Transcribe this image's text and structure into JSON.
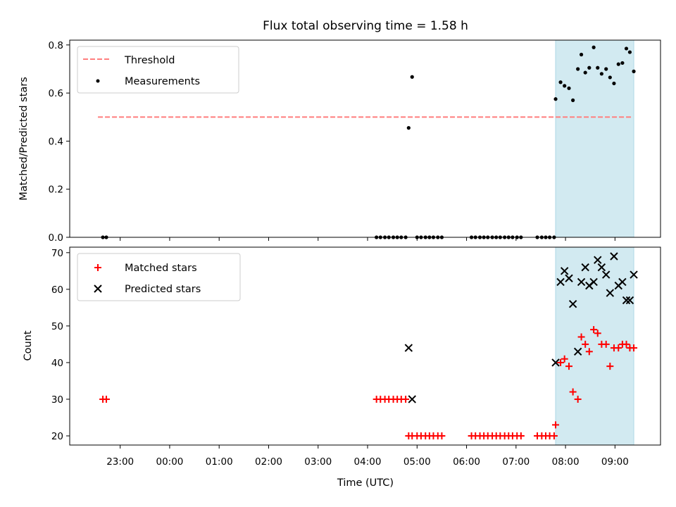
{
  "chart_data": {
    "type": "scatter",
    "title": "Flux total observing time = 1.58 h",
    "xlabel": "Time (UTC)",
    "x_ticks": [
      "23:00",
      "00:00",
      "01:00",
      "02:00",
      "03:00",
      "04:00",
      "05:00",
      "06:00",
      "07:00",
      "08:00",
      "09:00"
    ],
    "x_tick_hours": [
      23,
      24,
      25,
      26,
      27,
      28,
      29,
      30,
      31,
      32,
      33
    ],
    "xlim_hours": [
      21.98,
      33.92
    ],
    "highlight_span_hours": [
      31.8,
      33.38
    ],
    "colors": {
      "threshold": "#ff7f7f",
      "measurements": "#000000",
      "matched": "#ff0000",
      "predicted": "#000000",
      "highlight": "#add8e6"
    },
    "panels": [
      {
        "name": "ratio",
        "ylabel": "Matched/Predicted stars",
        "ylim": [
          0,
          0.82
        ],
        "y_ticks": [
          "0.0",
          "0.2",
          "0.4",
          "0.6",
          "0.8"
        ],
        "y_tick_values": [
          0,
          0.2,
          0.4,
          0.6,
          0.8
        ],
        "legend": [
          "Threshold",
          "Measurements"
        ],
        "legend_position": "upper-left",
        "threshold": {
          "name": "Threshold",
          "value": 0.5,
          "x_range_hours": [
            22.55,
            33.35
          ]
        },
        "measurements": {
          "name": "Measurements",
          "x_hours": [
            22.65,
            22.72,
            28.18,
            28.26,
            28.35,
            28.43,
            28.52,
            28.6,
            28.68,
            28.77,
            28.83,
            28.9,
            29.0,
            29.08,
            29.17,
            29.25,
            29.33,
            29.42,
            29.5,
            30.1,
            30.18,
            30.27,
            30.35,
            30.43,
            30.52,
            30.6,
            30.68,
            30.77,
            30.85,
            30.93,
            31.02,
            31.1,
            31.43,
            31.52,
            31.6,
            31.68,
            31.77,
            31.8,
            31.9,
            31.98,
            32.07,
            32.15,
            32.25,
            32.32,
            32.4,
            32.48,
            32.57,
            32.65,
            32.73,
            32.82,
            32.9,
            32.98,
            33.07,
            33.15,
            33.23,
            33.3,
            33.38
          ],
          "y": [
            0,
            0,
            0,
            0,
            0,
            0,
            0,
            0,
            0,
            0,
            0.455,
            0.667,
            0,
            0,
            0,
            0,
            0,
            0,
            0,
            0,
            0,
            0,
            0,
            0,
            0,
            0,
            0,
            0,
            0,
            0,
            0,
            0,
            0,
            0,
            0,
            0,
            0,
            0.575,
            0.645,
            0.63,
            0.62,
            0.57,
            0.7,
            0.76,
            0.685,
            0.705,
            0.79,
            0.705,
            0.68,
            0.7,
            0.665,
            0.64,
            0.72,
            0.725,
            0.785,
            0.77,
            0.69
          ]
        }
      },
      {
        "name": "count",
        "ylabel": "Count",
        "ylim": [
          17.5,
          71.5
        ],
        "y_ticks": [
          "20",
          "30",
          "40",
          "50",
          "60",
          "70"
        ],
        "y_tick_values": [
          20,
          30,
          40,
          50,
          60,
          70
        ],
        "legend": [
          "Matched stars",
          "Predicted stars"
        ],
        "legend_position": "upper-left",
        "matched": {
          "name": "Matched stars",
          "x_hours": [
            22.65,
            22.72,
            28.18,
            28.26,
            28.35,
            28.43,
            28.52,
            28.6,
            28.68,
            28.77,
            28.83,
            28.9,
            29.0,
            29.08,
            29.17,
            29.25,
            29.33,
            29.42,
            29.5,
            30.1,
            30.18,
            30.27,
            30.35,
            30.43,
            30.52,
            30.6,
            30.68,
            30.77,
            30.85,
            30.93,
            31.02,
            31.1,
            31.43,
            31.52,
            31.6,
            31.68,
            31.77,
            31.8,
            31.9,
            31.98,
            32.07,
            32.15,
            32.25,
            32.32,
            32.4,
            32.48,
            32.57,
            32.65,
            32.73,
            32.82,
            32.9,
            32.98,
            33.07,
            33.15,
            33.23,
            33.3,
            33.38
          ],
          "y": [
            30,
            30,
            30,
            30,
            30,
            30,
            30,
            30,
            30,
            30,
            20,
            20,
            20,
            20,
            20,
            20,
            20,
            20,
            20,
            20,
            20,
            20,
            20,
            20,
            20,
            20,
            20,
            20,
            20,
            20,
            20,
            20,
            20,
            20,
            20,
            20,
            20,
            23,
            40,
            41,
            39,
            32,
            30,
            47,
            45,
            43,
            49,
            48,
            45,
            45,
            39,
            44,
            44,
            45,
            45,
            44,
            44
          ]
        },
        "predicted": {
          "name": "Predicted stars",
          "x_hours": [
            28.83,
            28.9,
            31.8,
            31.9,
            31.98,
            32.07,
            32.15,
            32.25,
            32.32,
            32.4,
            32.48,
            32.57,
            32.65,
            32.73,
            32.82,
            32.9,
            32.98,
            33.07,
            33.15,
            33.23,
            33.3,
            33.38
          ],
          "y": [
            44,
            30,
            40,
            62,
            65,
            63,
            56,
            43,
            62,
            66,
            61,
            62,
            68,
            66,
            64,
            59,
            69,
            61,
            62,
            57,
            57,
            64
          ]
        }
      }
    ]
  }
}
